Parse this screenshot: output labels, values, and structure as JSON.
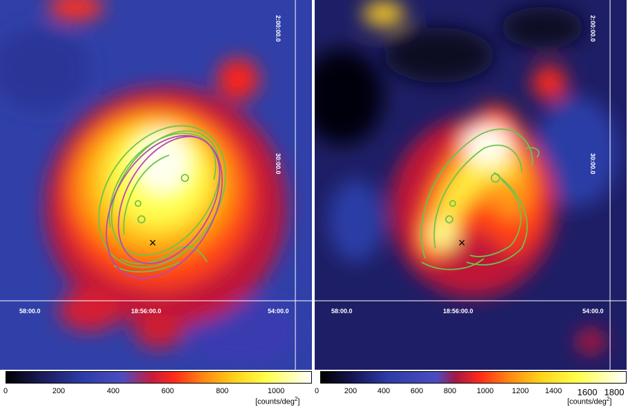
{
  "left_panel": {
    "ra_labels": [
      "58:00.0",
      "18:56:00.0",
      "54:00.0"
    ],
    "dec_labels": [
      "2:00:00.0",
      "30:00.0"
    ],
    "colorbar": {
      "ticks": [
        "0",
        "200",
        "400",
        "600",
        "800",
        "1000"
      ],
      "unit_text": "[counts/deg",
      "unit_sup": "2",
      "unit_close": "]"
    }
  },
  "right_panel": {
    "ra_labels": [
      "58:00.0",
      "18:56:00.0",
      "54:00.0"
    ],
    "dec_labels": [
      "2:00:00.0",
      "30:00.0"
    ],
    "colorbar": {
      "ticks": [
        "0",
        "200",
        "400",
        "600",
        "800",
        "1000",
        "1200",
        "1400",
        "1600",
        "1800"
      ],
      "unit_text": "[counts/deg",
      "unit_sup": "2",
      "unit_close": "]"
    }
  },
  "marker_symbol": "×",
  "colors": {
    "contour_green": "#6cc44a",
    "ellipse_magenta": "#b04ab8",
    "grid_white": "#ffffff",
    "colormap": [
      "#000000",
      "#1c1c5a",
      "#2c3ca6",
      "#4c4cc0",
      "#c81c3c",
      "#ff2a1a",
      "#ff8a12",
      "#ffd21a",
      "#ffff4a",
      "#ffffff"
    ]
  }
}
